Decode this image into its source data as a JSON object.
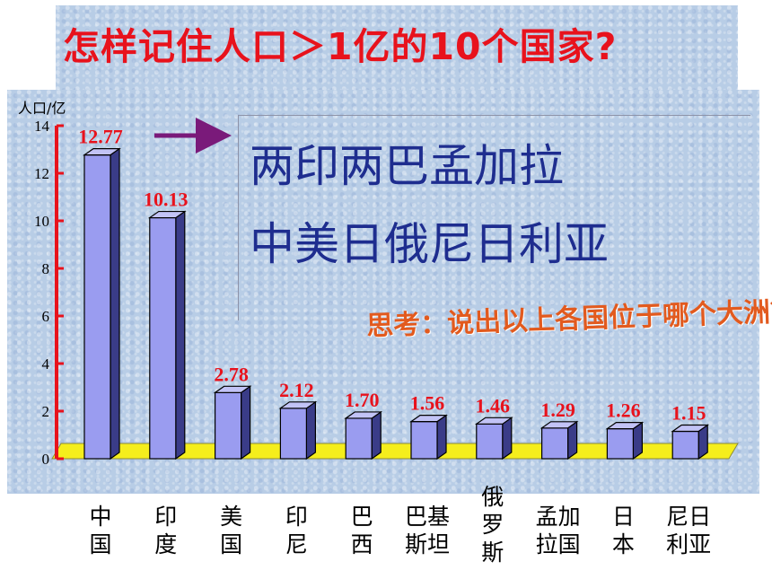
{
  "title": "怎样记住人口＞1亿的10个国家?",
  "mnemonic": {
    "line1": "两印两巴孟加拉",
    "line2": "中美日俄尼日利亚"
  },
  "question": "思考：说出以上各国位于哪个大洲？",
  "colors": {
    "title": "#e8121c",
    "bar_front": "#9a9cf0",
    "floor": "#f5ee1c",
    "mnemonic": "#1e2d8f",
    "question": "#e25a1e",
    "axis": "#e8121c"
  },
  "chart_data": {
    "type": "bar",
    "ylabel": "人口/亿",
    "ylim": [
      0,
      14
    ],
    "yticks": [
      "0",
      "2",
      "4",
      "6",
      "8",
      "10",
      "12",
      "14"
    ],
    "categories": [
      {
        "lines": [
          "中",
          "国"
        ]
      },
      {
        "lines": [
          "印",
          "度"
        ]
      },
      {
        "lines": [
          "美",
          "国"
        ]
      },
      {
        "lines": [
          "印",
          "尼"
        ]
      },
      {
        "lines": [
          "巴",
          "西"
        ]
      },
      {
        "lines": [
          "巴基",
          "斯坦"
        ]
      },
      {
        "lines": [
          "俄",
          "罗",
          "斯"
        ]
      },
      {
        "lines": [
          "孟加",
          "拉国"
        ]
      },
      {
        "lines": [
          "日",
          "本"
        ]
      },
      {
        "lines": [
          "尼日",
          "利亚"
        ]
      }
    ],
    "values": [
      12.77,
      10.13,
      2.78,
      2.12,
      1.7,
      1.56,
      1.46,
      1.29,
      1.26,
      1.15
    ],
    "labels": [
      "12.77",
      "10.13",
      "2.78",
      "2.12",
      "1.70",
      "1.56",
      "1.46",
      "1.29",
      "1.26",
      "1.15"
    ]
  }
}
